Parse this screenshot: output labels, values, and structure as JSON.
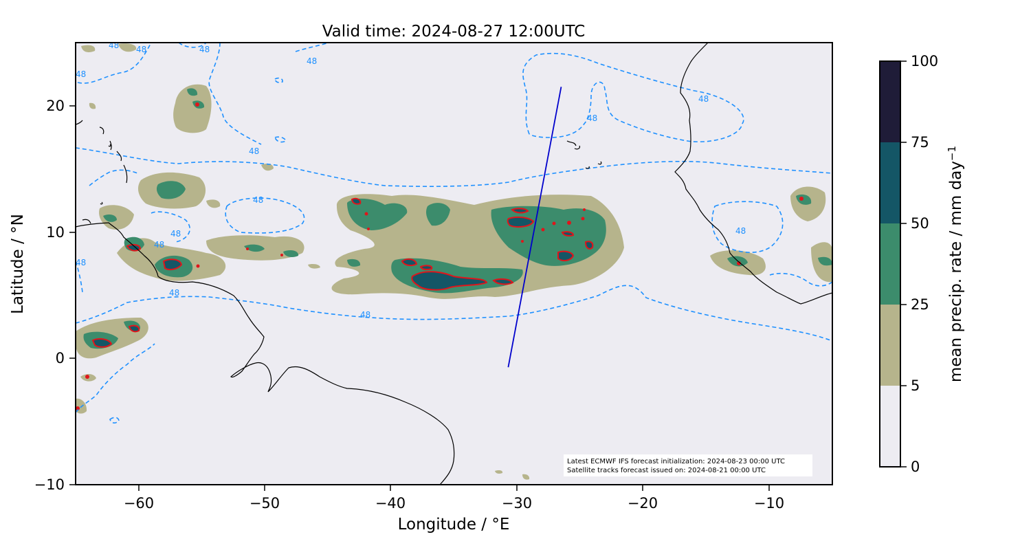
{
  "title": "Valid time: 2024-08-27 12:00UTC",
  "xlabel": "Longitude / °E",
  "ylabel": "Latitude / °N",
  "x_ticks": [
    "−60",
    "−50",
    "−40",
    "−30",
    "−20",
    "−10"
  ],
  "y_ticks": [
    "20",
    "10",
    "0",
    "−10"
  ],
  "extent": {
    "lon": [
      -65,
      -5
    ],
    "lat": [
      -10,
      25
    ]
  },
  "colorbar": {
    "label": "mean precip. rate / mm day",
    "label_superscript": "−1",
    "ticks": [
      "0",
      "5",
      "25",
      "50",
      "75",
      "100"
    ],
    "levels": [
      0,
      5,
      25,
      50,
      75,
      100
    ],
    "colors": [
      "#edecf2",
      "#b6b48c",
      "#3c8c6c",
      "#145666",
      "#1f1c38"
    ]
  },
  "contour_label": "48",
  "colors": {
    "background": "#edecf2",
    "coast": "#000000",
    "contour_48": "#1e90ff",
    "heavy_outline": "#e0151b",
    "track": "#0000cc"
  },
  "note": {
    "line1": "Latest ECMWF IFS forecast initialization: 2024-08-23 00:00 UTC",
    "line2": "Satellite tracks forecast issued on: 2024-08-21 00:00 UTC"
  },
  "satellite_track": [
    [
      -30.7,
      -0.7
    ],
    [
      -26.5,
      21.5
    ]
  ]
}
